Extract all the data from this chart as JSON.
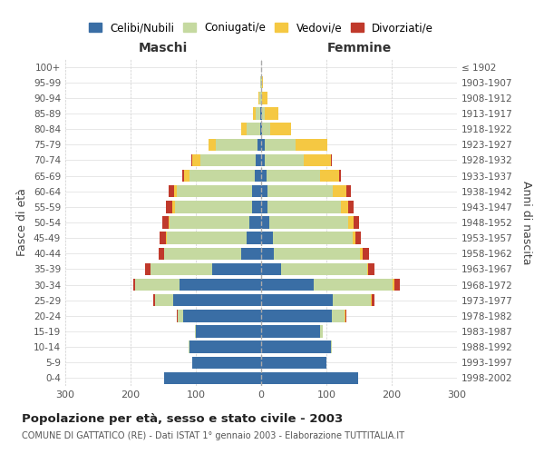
{
  "age_groups": [
    "0-4",
    "5-9",
    "10-14",
    "15-19",
    "20-24",
    "25-29",
    "30-34",
    "35-39",
    "40-44",
    "45-49",
    "50-54",
    "55-59",
    "60-64",
    "65-69",
    "70-74",
    "75-79",
    "80-84",
    "85-89",
    "90-94",
    "95-99",
    "100+"
  ],
  "birth_years": [
    "1998-2002",
    "1993-1997",
    "1988-1992",
    "1983-1987",
    "1978-1982",
    "1973-1977",
    "1968-1972",
    "1963-1967",
    "1958-1962",
    "1953-1957",
    "1948-1952",
    "1943-1947",
    "1938-1942",
    "1933-1937",
    "1928-1932",
    "1923-1927",
    "1918-1922",
    "1913-1917",
    "1908-1912",
    "1903-1907",
    "≤ 1902"
  ],
  "male": {
    "celibi": [
      148,
      105,
      110,
      100,
      120,
      135,
      125,
      75,
      30,
      22,
      18,
      14,
      14,
      10,
      8,
      5,
      2,
      1,
      0,
      0,
      0
    ],
    "coniugati": [
      0,
      0,
      1,
      2,
      8,
      28,
      68,
      95,
      118,
      122,
      122,
      118,
      115,
      100,
      85,
      65,
      20,
      8,
      3,
      1,
      0
    ],
    "vedovi": [
      0,
      0,
      0,
      0,
      0,
      0,
      0,
      0,
      1,
      2,
      2,
      4,
      5,
      8,
      12,
      10,
      8,
      3,
      1,
      0,
      0
    ],
    "divorziati": [
      0,
      0,
      0,
      0,
      1,
      2,
      3,
      8,
      8,
      10,
      10,
      10,
      8,
      3,
      2,
      0,
      0,
      0,
      0,
      0,
      0
    ]
  },
  "female": {
    "nubili": [
      148,
      100,
      107,
      90,
      108,
      110,
      80,
      30,
      20,
      18,
      12,
      10,
      10,
      8,
      5,
      5,
      2,
      1,
      0,
      0,
      0
    ],
    "coniugate": [
      0,
      0,
      1,
      4,
      20,
      58,
      122,
      132,
      132,
      122,
      122,
      112,
      100,
      82,
      60,
      48,
      12,
      5,
      2,
      1,
      0
    ],
    "vedove": [
      0,
      0,
      0,
      0,
      1,
      2,
      2,
      2,
      3,
      5,
      8,
      12,
      20,
      30,
      42,
      48,
      32,
      20,
      8,
      2,
      0
    ],
    "divorziate": [
      0,
      0,
      0,
      0,
      2,
      3,
      8,
      10,
      10,
      8,
      8,
      8,
      8,
      2,
      1,
      0,
      0,
      0,
      0,
      0,
      0
    ]
  },
  "colors": {
    "celibi": "#3a6ea5",
    "coniugati": "#c5d9a0",
    "vedovi": "#f5c842",
    "divorziati": "#c0392b"
  },
  "title": "Popolazione per età, sesso e stato civile - 2003",
  "subtitle": "COMUNE DI GATTATICO (RE) - Dati ISTAT 1° gennaio 2003 - Elaborazione TUTTITALIA.IT",
  "xlabel_left": "Maschi",
  "xlabel_right": "Femmine",
  "ylabel_left": "Fasce di età",
  "ylabel_right": "Anni di nascita",
  "xlim": 300,
  "legend_labels": [
    "Celibi/Nubili",
    "Coniugati/e",
    "Vedovi/e",
    "Divorziati/e"
  ],
  "bg_color": "#ffffff"
}
